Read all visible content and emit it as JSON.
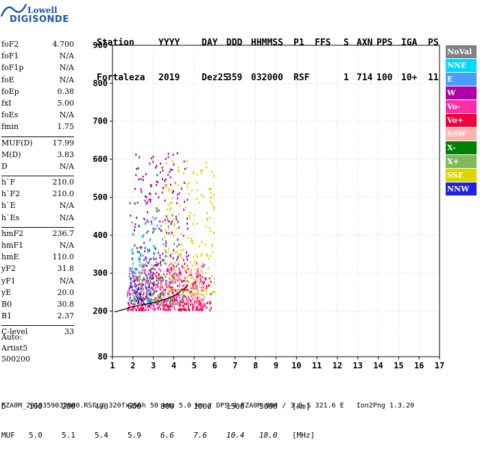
{
  "logo": {
    "line1": "Lowell",
    "line2": "DIGISONDE"
  },
  "header": {
    "labels": [
      "Station",
      "YYYY",
      "DAY",
      "DDD",
      "HHMMSS",
      "P1",
      "FFS",
      "S",
      "AXN",
      "PPS",
      "IGA",
      "PS"
    ],
    "values": [
      "Fortaleza",
      "2019",
      "Dez25",
      "359",
      "032000",
      "RSF",
      "",
      "1",
      "714",
      "100",
      "10+",
      "11"
    ]
  },
  "parameters": [
    [
      [
        "foF2",
        "4.700"
      ],
      [
        "foF1",
        "N/A"
      ],
      [
        "foF1p",
        "N/A"
      ],
      [
        "foE",
        "N/A"
      ],
      [
        "foEp",
        "0.38"
      ],
      [
        "fxI",
        "5.00"
      ],
      [
        "foEs",
        "N/A"
      ],
      [
        "fmin",
        "1.75"
      ]
    ],
    [
      [
        "MUF(D)",
        "17.99"
      ],
      [
        "M(D)",
        "3.83"
      ],
      [
        "D",
        "N/A"
      ]
    ],
    [
      [
        "h`F",
        "210.0"
      ],
      [
        "h`F2",
        "210.0"
      ],
      [
        "h`E",
        "N/A"
      ],
      [
        "h`Es",
        "N/A"
      ]
    ],
    [
      [
        "hmF2",
        "236.7"
      ],
      [
        "hmF1",
        "N/A"
      ],
      [
        "hmE",
        "110.0"
      ],
      [
        "yF2",
        "31.8"
      ],
      [
        "yF1",
        "N/A"
      ],
      [
        "yE",
        "20.0"
      ],
      [
        "B0",
        "30.8"
      ],
      [
        "B1",
        "2.37"
      ]
    ],
    [
      [
        "C-level",
        "33"
      ]
    ]
  ],
  "auto": {
    "line1": "Auto:",
    "line2": "Artist5",
    "line3": "500200"
  },
  "legend": [
    {
      "label": "NoVal",
      "color": "#808080"
    },
    {
      "label": "NNE",
      "color": "#00d8ff"
    },
    {
      "label": "E",
      "color": "#4a9cff"
    },
    {
      "label": "W",
      "color": "#b000a8"
    },
    {
      "label": "Vo-",
      "color": "#ff2ca8"
    },
    {
      "label": "Vo+",
      "color": "#f0003c"
    },
    {
      "label": "SSW",
      "color": "#ffb0b0"
    },
    {
      "label": "X-",
      "color": "#008000"
    },
    {
      "label": "X+",
      "color": "#80b860"
    },
    {
      "label": "SSE",
      "color": "#d8d800"
    },
    {
      "label": "NNW",
      "color": "#2020e0"
    }
  ],
  "muf_table": {
    "d_label": "D",
    "d_values": [
      "100",
      "200",
      "400",
      "600",
      "800",
      "1000",
      "1500",
      "3000"
    ],
    "d_unit": "[km]",
    "muf_label": "MUF",
    "muf_values": [
      "5.0",
      "5.1",
      "5.4",
      "5.9",
      "6.6",
      "7.6",
      "10.4",
      "18.0"
    ],
    "muf_unit": "[MHz]"
  },
  "footer": "FZA0M_2019359032000.RSF / 320fx256h 50 kHz 5.0 km / DPS-4 FZA0M 904 / 3.9 S 321.6 E   Ion2Png 1.3.20",
  "chart_data": {
    "type": "scatter",
    "xlim": [
      1,
      17
    ],
    "ylim": [
      80,
      900
    ],
    "x_ticks": [
      1,
      2,
      3,
      4,
      5,
      6,
      7,
      8,
      9,
      10,
      11,
      12,
      13,
      14,
      15,
      16,
      17
    ],
    "y_ticks": [
      80,
      200,
      300,
      400,
      500,
      600,
      700,
      800,
      900
    ],
    "grid": "dotted",
    "legend": "right",
    "trace": {
      "x": [
        1.1,
        1.6,
        2.0,
        2.5,
        3.0,
        3.5,
        4.0,
        4.4,
        4.7
      ],
      "y": [
        198,
        205,
        212,
        217,
        222,
        230,
        240,
        255,
        268
      ]
    },
    "clusters": [
      {
        "series": "W",
        "x": [
          2.0,
          4.7
        ],
        "y": [
          220,
          620
        ],
        "density": 260
      },
      {
        "series": "Vo-",
        "x": [
          1.7,
          5.5
        ],
        "y": [
          205,
          330
        ],
        "density": 320
      },
      {
        "series": "Vo+",
        "x": [
          1.7,
          5.8
        ],
        "y": [
          205,
          310
        ],
        "density": 200
      },
      {
        "series": "SSE",
        "x": [
          3.5,
          6.0
        ],
        "y": [
          245,
          600
        ],
        "density": 200
      },
      {
        "series": "NNE",
        "x": [
          1.8,
          3.0
        ],
        "y": [
          225,
          400
        ],
        "density": 60
      },
      {
        "series": "E",
        "x": [
          1.8,
          3.5
        ],
        "y": [
          230,
          450
        ],
        "density": 60
      },
      {
        "series": "X-",
        "x": [
          1.8,
          3.5
        ],
        "y": [
          230,
          600
        ],
        "density": 40
      },
      {
        "series": "SSW",
        "x": [
          2.0,
          5.5
        ],
        "y": [
          220,
          330
        ],
        "density": 140
      },
      {
        "series": "NNW",
        "x": [
          1.8,
          3.0
        ],
        "y": [
          220,
          300
        ],
        "density": 40
      },
      {
        "series": "X+",
        "x": [
          2.0,
          4.0
        ],
        "y": [
          220,
          300
        ],
        "density": 50
      },
      {
        "series": "NoVal",
        "x": [
          2.0,
          4.5
        ],
        "y": [
          230,
          450
        ],
        "density": 60
      }
    ]
  }
}
